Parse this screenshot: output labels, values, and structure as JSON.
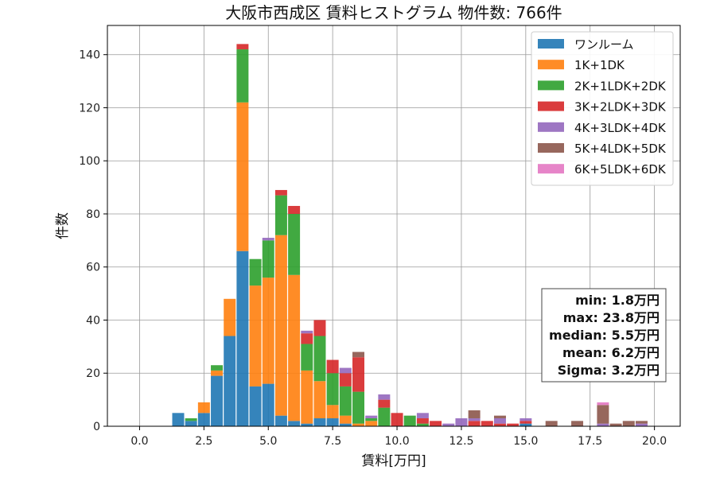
{
  "chart_data": {
    "type": "bar",
    "stacked": true,
    "title": "大阪市西成区 賃料ヒストグラム  物件数: 766件",
    "xlabel": "賃料[万円]",
    "ylabel": "件数",
    "xlim": [
      -1.25,
      21.0
    ],
    "ylim": [
      0,
      151
    ],
    "x_ticks": [
      "0.0",
      "2.5",
      "5.0",
      "7.5",
      "10.0",
      "12.5",
      "15.0",
      "17.5",
      "20.0"
    ],
    "y_ticks": [
      "0",
      "20",
      "40",
      "60",
      "80",
      "100",
      "120",
      "140"
    ],
    "bin_width": 0.5,
    "grid": true,
    "legend_position": "top-right",
    "x": [
      1.5,
      2.0,
      2.5,
      3.0,
      3.5,
      4.0,
      4.5,
      5.0,
      5.5,
      6.0,
      6.5,
      7.0,
      7.5,
      8.0,
      8.5,
      9.0,
      9.5,
      10.0,
      10.5,
      11.0,
      11.5,
      12.0,
      12.5,
      13.0,
      13.5,
      14.0,
      14.5,
      15.0,
      15.5,
      16.0,
      16.5,
      17.0,
      17.5,
      18.0,
      18.5,
      19.0,
      19.5
    ],
    "series": [
      {
        "name": "ワンルーム",
        "color": "#1f77b4",
        "values": [
          5,
          2,
          5,
          19,
          34,
          66,
          15,
          16,
          4,
          2,
          1,
          3,
          3,
          1,
          0,
          0,
          0,
          0,
          0,
          0,
          0,
          0,
          0,
          0,
          0,
          0,
          0,
          1,
          0,
          0,
          0,
          0,
          0,
          0,
          0,
          0,
          0
        ]
      },
      {
        "name": "1K+1DK",
        "color": "#ff7f0e",
        "values": [
          0,
          0,
          4,
          2,
          14,
          56,
          38,
          40,
          68,
          55,
          20,
          14,
          5,
          3,
          1,
          2,
          0,
          0,
          0,
          0,
          0,
          0,
          0,
          0,
          0,
          0,
          0,
          0,
          0,
          0,
          0,
          0,
          0,
          0,
          0,
          0,
          0
        ]
      },
      {
        "name": "2K+1LDK+2DK",
        "color": "#2ca02c",
        "values": [
          0,
          1,
          0,
          2,
          0,
          20,
          10,
          14,
          15,
          23,
          10,
          17,
          12,
          11,
          12,
          1,
          7,
          0,
          4,
          1,
          0,
          0,
          0,
          0,
          0,
          0,
          0,
          0,
          0,
          0,
          0,
          0,
          0,
          0,
          0,
          0,
          0
        ]
      },
      {
        "name": "3K+2LDK+3DK",
        "color": "#d62728",
        "values": [
          0,
          0,
          0,
          0,
          0,
          2,
          0,
          0,
          2,
          3,
          4,
          6,
          5,
          5,
          13,
          0,
          3,
          5,
          0,
          2,
          2,
          0,
          0,
          2,
          2,
          1,
          1,
          1,
          0,
          0,
          0,
          0,
          0,
          0,
          0,
          0,
          0
        ]
      },
      {
        "name": "4K+3LDK+4DK",
        "color": "#9467bd",
        "values": [
          0,
          0,
          0,
          0,
          0,
          0,
          0,
          1,
          0,
          0,
          1,
          0,
          0,
          2,
          0,
          1,
          2,
          0,
          0,
          2,
          0,
          1,
          3,
          1,
          0,
          2,
          0,
          1,
          0,
          0,
          0,
          0,
          0,
          1,
          0,
          0,
          1
        ]
      },
      {
        "name": "5K+4LDK+5DK",
        "color": "#8c564b",
        "values": [
          0,
          0,
          0,
          0,
          0,
          0,
          0,
          0,
          0,
          0,
          0,
          0,
          0,
          0,
          2,
          0,
          0,
          0,
          0,
          0,
          0,
          0,
          0,
          3,
          0,
          1,
          0,
          0,
          0,
          2,
          0,
          2,
          0,
          7,
          1,
          2,
          1
        ]
      },
      {
        "name": "6K+5LDK+6DK",
        "color": "#e377c2",
        "values": [
          0,
          0,
          0,
          0,
          0,
          0,
          0,
          0,
          0,
          0,
          0,
          0,
          0,
          0,
          0,
          0,
          0,
          0,
          0,
          0,
          0,
          0,
          0,
          0,
          0,
          0,
          0,
          0,
          0,
          0,
          0,
          0,
          0,
          1,
          0,
          0,
          0
        ]
      }
    ],
    "stats": [
      "min: 1.8万円",
      "max: 23.8万円",
      "median: 5.5万円",
      "mean: 6.2万円",
      "Sigma: 3.2万円"
    ]
  }
}
